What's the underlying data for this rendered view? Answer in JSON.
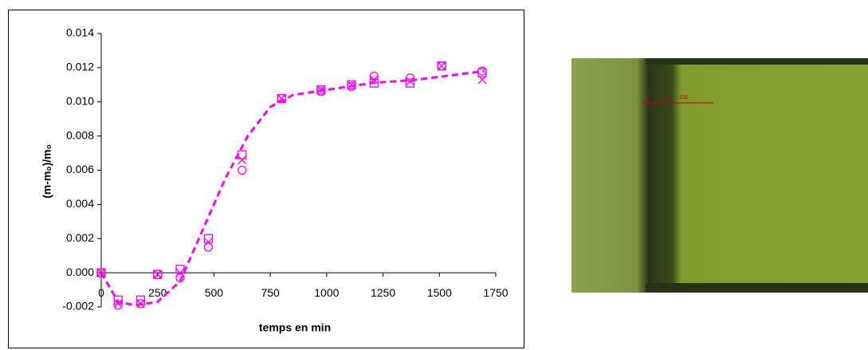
{
  "chart_data": {
    "type": "scatter",
    "x_label": "temps en min",
    "y_label": "(m-m₀)/m₀",
    "x": [
      0,
      75,
      175,
      250,
      350,
      475,
      625,
      800,
      975,
      1110,
      1210,
      1370,
      1510,
      1690
    ],
    "series": [
      {
        "marker": "square",
        "color": "#ff00ff",
        "values": [
          0.0,
          -0.0016,
          -0.0016,
          -0.0001,
          0.0002,
          0.002,
          0.0069,
          0.0102,
          0.0107,
          0.011,
          0.0111,
          0.0111,
          0.0121,
          0.0117
        ]
      },
      {
        "marker": "circle",
        "color": "#ff00ff",
        "values": [
          0.0,
          -0.0019,
          -0.0018,
          -0.0001,
          -0.0003,
          0.0015,
          0.006,
          0.0102,
          0.0106,
          0.0109,
          0.0115,
          0.0114,
          0.0121,
          0.0118
        ]
      },
      {
        "marker": "x",
        "color": "#ff00ff",
        "values": [
          0.0,
          -0.0018,
          -0.0018,
          -0.0001,
          0.0,
          0.0018,
          0.0066,
          0.0102,
          0.0107,
          0.011,
          0.0113,
          0.0112,
          0.0121,
          0.0113
        ]
      },
      {
        "marker": "dashed-line",
        "color": "#ff00ff",
        "x": [
          0,
          75,
          150,
          250,
          350,
          450,
          550,
          650,
          750,
          850,
          1000,
          1200,
          1400,
          1700
        ],
        "values": [
          0.0,
          -0.0017,
          -0.0019,
          -0.0017,
          -0.0005,
          0.0025,
          0.0055,
          0.008,
          0.0097,
          0.0104,
          0.0107,
          0.0111,
          0.0113,
          0.0118
        ]
      }
    ],
    "xlim": [
      0,
      1750
    ],
    "xticks": [
      0,
      250,
      500,
      750,
      1000,
      1250,
      1500,
      1750
    ],
    "ylim": [
      -0.002,
      0.014
    ],
    "yticks": [
      -0.002,
      {
        "value": 0,
        "label": "0.000"
      },
      0.002,
      0.004,
      0.006,
      0.008,
      {
        "value": 0.01,
        "label": "0.010"
      },
      0.012,
      0.014
    ]
  },
  "image": {
    "scale_labels": [
      "0",
      "µm",
      "100"
    ]
  }
}
